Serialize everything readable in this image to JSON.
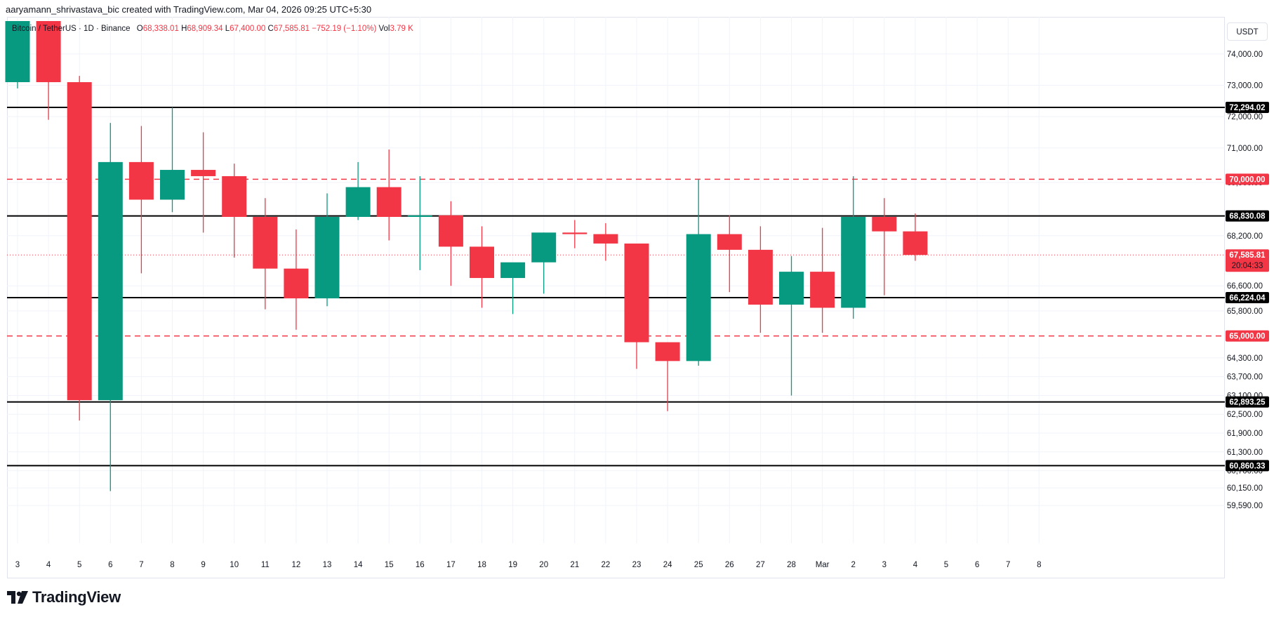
{
  "header": {
    "credit": "aaryamann_shrivastava_bic created with TradingView.com, Mar 04, 2026 09:25 UTC+5:30"
  },
  "legend": {
    "symbol": "Bitcoin / TetherUS · 1D · Binance",
    "open_label": "O",
    "open": "68,338.01",
    "high_label": "H",
    "high": "68,909.34",
    "low_label": "L",
    "low": "67,400.00",
    "close_label": "C",
    "close": "67,585.81",
    "change": "−752.19 (−1.10%)",
    "vol_label": "Vol",
    "vol": "3.79 K"
  },
  "currency": "USDT",
  "brand": {
    "name": "TradingView"
  },
  "colors": {
    "up": "#089981",
    "down": "#f23645",
    "level": "#000000",
    "dashed_level": "#f23645",
    "grid": "#f0f3fa"
  },
  "chart_data": {
    "type": "candlestick",
    "ylim": [
      59100,
      75050
    ],
    "y_ticks": [
      59590,
      60150,
      60700,
      61300,
      61900,
      62500,
      63100,
      63700,
      64300,
      65800,
      66600,
      68200,
      69900,
      71000,
      72000,
      73000,
      74000
    ],
    "y_tick_labels": [
      "59,590.00",
      "60,150.00",
      "60,700.00",
      "61,300.00",
      "61,900.00",
      "62,500.00",
      "63,100.00",
      "63,700.00",
      "64,300.00",
      "65,800.00",
      "66,600.00",
      "68,200.00",
      "69,900.00",
      "71,000.00",
      "72,000.00",
      "73,000.00",
      "74,000.00"
    ],
    "x_labels": [
      "3",
      "4",
      "5",
      "6",
      "7",
      "8",
      "9",
      "10",
      "11",
      "12",
      "13",
      "14",
      "15",
      "16",
      "17",
      "18",
      "19",
      "20",
      "21",
      "22",
      "23",
      "24",
      "25",
      "26",
      "27",
      "28",
      "Mar",
      "2",
      "3",
      "4",
      "5",
      "6",
      "7",
      "8"
    ],
    "candles": [
      {
        "o": 73100,
        "h": 75050,
        "l": 72900,
        "c": 75050
      },
      {
        "o": 75050,
        "h": 75050,
        "l": 71900,
        "c": 73100
      },
      {
        "o": 73100,
        "h": 73300,
        "l": 62300,
        "c": 62950
      },
      {
        "o": 62950,
        "h": 71800,
        "l": 60050,
        "c": 70550
      },
      {
        "o": 70550,
        "h": 71700,
        "l": 67000,
        "c": 69350
      },
      {
        "o": 69350,
        "h": 72300,
        "l": 68950,
        "c": 70300
      },
      {
        "o": 70300,
        "h": 71500,
        "l": 68300,
        "c": 70100
      },
      {
        "o": 70100,
        "h": 70500,
        "l": 67500,
        "c": 68800
      },
      {
        "o": 68800,
        "h": 69400,
        "l": 65850,
        "c": 67150
      },
      {
        "o": 67150,
        "h": 68400,
        "l": 65200,
        "c": 66200
      },
      {
        "o": 66200,
        "h": 69550,
        "l": 65950,
        "c": 68800
      },
      {
        "o": 68800,
        "h": 70550,
        "l": 68700,
        "c": 69750
      },
      {
        "o": 69750,
        "h": 70950,
        "l": 68050,
        "c": 68800
      },
      {
        "o": 68800,
        "h": 70100,
        "l": 67100,
        "c": 68850
      },
      {
        "o": 68850,
        "h": 69300,
        "l": 66600,
        "c": 67850
      },
      {
        "o": 67850,
        "h": 68500,
        "l": 65900,
        "c": 66850
      },
      {
        "o": 66850,
        "h": 67300,
        "l": 65700,
        "c": 67350
      },
      {
        "o": 67350,
        "h": 68300,
        "l": 66350,
        "c": 68300
      },
      {
        "o": 68300,
        "h": 68700,
        "l": 67800,
        "c": 68250
      },
      {
        "o": 68250,
        "h": 68600,
        "l": 67400,
        "c": 67950
      },
      {
        "o": 67950,
        "h": 67950,
        "l": 63950,
        "c": 64800
      },
      {
        "o": 64800,
        "h": 64800,
        "l": 62600,
        "c": 64200
      },
      {
        "o": 64200,
        "h": 70000,
        "l": 64050,
        "c": 68250
      },
      {
        "o": 68250,
        "h": 68850,
        "l": 66400,
        "c": 67750
      },
      {
        "o": 67750,
        "h": 68500,
        "l": 65100,
        "c": 66000
      },
      {
        "o": 66000,
        "h": 67550,
        "l": 63100,
        "c": 67050
      },
      {
        "o": 67050,
        "h": 68450,
        "l": 65100,
        "c": 65900
      },
      {
        "o": 65900,
        "h": 70100,
        "l": 65550,
        "c": 68800
      },
      {
        "o": 68800,
        "h": 69400,
        "l": 66300,
        "c": 68338.01
      },
      {
        "o": 68338.01,
        "h": 68909.34,
        "l": 67400,
        "c": 67585.81
      }
    ],
    "horizontal_levels": [
      {
        "value": 72294.02,
        "label": "72,294.02",
        "style": "solid"
      },
      {
        "value": 70000.0,
        "label": "70,000.00",
        "style": "dashed"
      },
      {
        "value": 68830.08,
        "label": "68,830.08",
        "style": "solid"
      },
      {
        "value": 66224.04,
        "label": "66,224.04",
        "style": "solid"
      },
      {
        "value": 65000.0,
        "label": "65,000.00",
        "style": "dashed"
      },
      {
        "value": 62893.25,
        "label": "62,893.25",
        "style": "solid"
      },
      {
        "value": 60860.33,
        "label": "60,860.33",
        "style": "solid"
      }
    ],
    "last_price": {
      "value": 67585.81,
      "label": "67,585.81",
      "countdown": "20:04:33"
    },
    "grid": true
  }
}
